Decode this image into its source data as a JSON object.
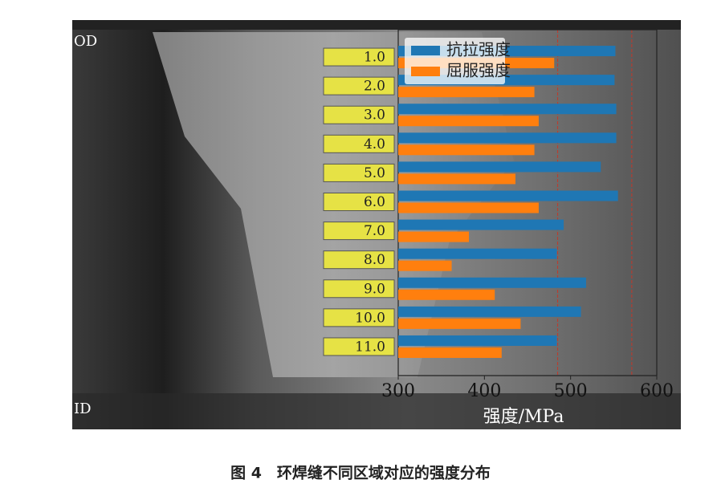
{
  "chart_data": {
    "type": "bar",
    "orientation": "horizontal",
    "categories": [
      "1.0",
      "2.0",
      "3.0",
      "4.0",
      "5.0",
      "6.0",
      "7.0",
      "8.0",
      "9.0",
      "10.0",
      "11.0"
    ],
    "series": [
      {
        "name": "抗拉强度",
        "color": "#1f77b4",
        "values": [
          552,
          551,
          553,
          553,
          535,
          555,
          492,
          484,
          518,
          512,
          484
        ]
      },
      {
        "name": "屈服强度",
        "color": "#ff7f0e",
        "values": [
          481,
          458,
          463,
          458,
          436,
          463,
          382,
          362,
          412,
          442,
          420
        ]
      }
    ],
    "xlim": [
      300,
      600
    ],
    "xticks": [
      300,
      400,
      500,
      600
    ],
    "xlabel": "强度/MPa",
    "legend": "upper left",
    "reference_lines": [
      485,
      571
    ]
  },
  "image_labels": [
    "OD",
    "ID"
  ],
  "caption": "图 4　环焊缝不同区域对应的强度分布"
}
